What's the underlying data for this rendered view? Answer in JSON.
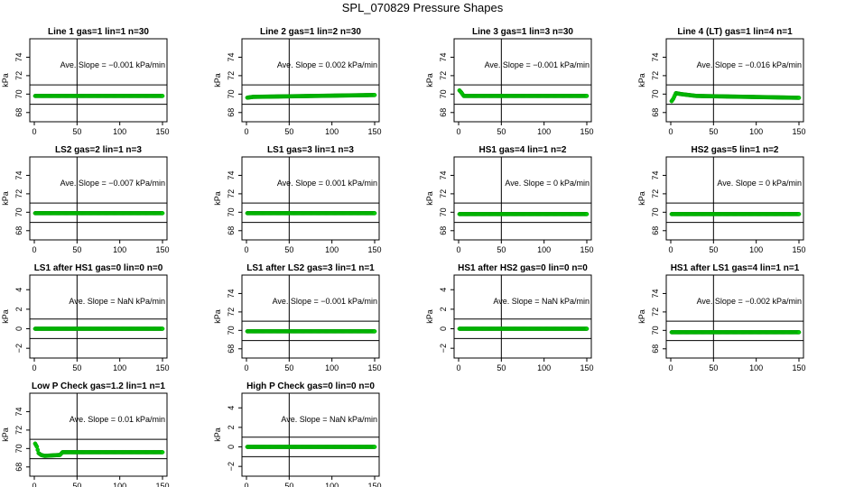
{
  "page": {
    "title": "SPL_070829  Pressure Shapes"
  },
  "style": {
    "series_color": "#00cc00",
    "marker_stroke": "#009900",
    "axis_color": "#000000"
  },
  "axis_labels": {
    "y": "kPa"
  },
  "chart_data": [
    {
      "type": "scatter",
      "title": "Line 1 gas=1 lin=1 n=30",
      "ylabel": "kPa",
      "xlim": [
        0,
        150
      ],
      "ylim": [
        67,
        76
      ],
      "xticks": [
        0,
        50,
        100,
        150
      ],
      "yticks": [
        68,
        70,
        72,
        74
      ],
      "hlines": [
        71,
        68.9
      ],
      "vline": 50,
      "slope_label": "Ave. Slope = -0.001  kPa/min",
      "series": [
        {
          "x_start": 1,
          "x_end": 150,
          "points": [
            [
              0,
              69.8
            ],
            [
              150,
              69.8
            ]
          ]
        }
      ]
    },
    {
      "type": "scatter",
      "title": "Line 2 gas=1 lin=2 n=30",
      "ylabel": "kPa",
      "xlim": [
        0,
        150
      ],
      "ylim": [
        67,
        76
      ],
      "xticks": [
        0,
        50,
        100,
        150
      ],
      "yticks": [
        68,
        70,
        72,
        74
      ],
      "hlines": [
        71,
        68.9
      ],
      "vline": 50,
      "slope_label": "Ave. Slope = 0.002  kPa/min",
      "series": [
        {
          "x_start": 1,
          "x_end": 150,
          "points": [
            [
              0,
              69.6
            ],
            [
              8,
              69.7
            ],
            [
              150,
              69.9
            ]
          ]
        }
      ]
    },
    {
      "type": "scatter",
      "title": "Line 3 gas=1 lin=3 n=30",
      "ylabel": "kPa",
      "xlim": [
        0,
        150
      ],
      "ylim": [
        67,
        76
      ],
      "xticks": [
        0,
        50,
        100,
        150
      ],
      "yticks": [
        68,
        70,
        72,
        74
      ],
      "hlines": [
        71,
        68.9
      ],
      "vline": 50,
      "slope_label": "Ave. Slope = -0.001  kPa/min",
      "series": [
        {
          "x_start": 1,
          "x_end": 150,
          "points": [
            [
              0,
              70.5
            ],
            [
              3,
              70.2
            ],
            [
              6,
              69.8
            ],
            [
              150,
              69.8
            ]
          ]
        }
      ]
    },
    {
      "type": "scatter",
      "title": "Line 4 (LT) gas=1 lin=4 n=1",
      "ylabel": "kPa",
      "xlim": [
        0,
        150
      ],
      "ylim": [
        67,
        76
      ],
      "xticks": [
        0,
        50,
        100,
        150
      ],
      "yticks": [
        68,
        70,
        72,
        74
      ],
      "hlines": [
        71,
        68.9
      ],
      "vline": 50,
      "slope_label": "Ave. Slope = -0.016  kPa/min",
      "series": [
        {
          "x_start": 1,
          "x_end": 150,
          "points": [
            [
              0,
              69.1
            ],
            [
              3,
              69.5
            ],
            [
              6,
              70.1
            ],
            [
              12,
              70.0
            ],
            [
              30,
              69.8
            ],
            [
              150,
              69.6
            ]
          ]
        }
      ]
    },
    {
      "type": "scatter",
      "title": "LS2 gas=2 lin=1 n=3",
      "ylabel": "kPa",
      "xlim": [
        0,
        150
      ],
      "ylim": [
        67,
        76
      ],
      "xticks": [
        0,
        50,
        100,
        150
      ],
      "yticks": [
        68,
        70,
        72,
        74
      ],
      "hlines": [
        71,
        68.9
      ],
      "vline": 50,
      "slope_label": "Ave. Slope = -0.007  kPa/min",
      "series": [
        {
          "x_start": 1,
          "x_end": 150,
          "points": [
            [
              0,
              69.9
            ],
            [
              150,
              69.9
            ]
          ]
        }
      ]
    },
    {
      "type": "scatter",
      "title": "LS1 gas=3 lin=1 n=3",
      "ylabel": "kPa",
      "xlim": [
        0,
        150
      ],
      "ylim": [
        67,
        76
      ],
      "xticks": [
        0,
        50,
        100,
        150
      ],
      "yticks": [
        68,
        70,
        72,
        74
      ],
      "hlines": [
        71,
        68.9
      ],
      "vline": 50,
      "slope_label": "Ave. Slope = 0.001  kPa/min",
      "series": [
        {
          "x_start": 1,
          "x_end": 150,
          "points": [
            [
              0,
              69.9
            ],
            [
              150,
              69.9
            ]
          ]
        }
      ]
    },
    {
      "type": "scatter",
      "title": "HS1 gas=4 lin=1 n=2",
      "ylabel": "kPa",
      "xlim": [
        0,
        150
      ],
      "ylim": [
        67,
        76
      ],
      "xticks": [
        0,
        50,
        100,
        150
      ],
      "yticks": [
        68,
        70,
        72,
        74
      ],
      "hlines": [
        71,
        68.9
      ],
      "vline": 50,
      "slope_label": "Ave. Slope = 0  kPa/min",
      "series": [
        {
          "x_start": 1,
          "x_end": 150,
          "points": [
            [
              0,
              69.8
            ],
            [
              150,
              69.8
            ]
          ]
        }
      ]
    },
    {
      "type": "scatter",
      "title": "HS2 gas=5 lin=1 n=2",
      "ylabel": "kPa",
      "xlim": [
        0,
        150
      ],
      "ylim": [
        67,
        76
      ],
      "xticks": [
        0,
        50,
        100,
        150
      ],
      "yticks": [
        68,
        70,
        72,
        74
      ],
      "hlines": [
        71,
        68.9
      ],
      "vline": 50,
      "slope_label": "Ave. Slope = 0  kPa/min",
      "series": [
        {
          "x_start": 1,
          "x_end": 150,
          "points": [
            [
              0,
              69.8
            ],
            [
              150,
              69.8
            ]
          ]
        }
      ]
    },
    {
      "type": "scatter",
      "title": "LS1 after HS1 gas=0 lin=0 n=0",
      "ylabel": "kPa",
      "xlim": [
        0,
        150
      ],
      "ylim": [
        -3,
        5.5
      ],
      "xticks": [
        0,
        50,
        100,
        150
      ],
      "yticks": [
        -2,
        0,
        2,
        4
      ],
      "hlines": [
        1,
        -1
      ],
      "vline": 50,
      "slope_label": "Ave. Slope = NaN  kPa/min",
      "series": [
        {
          "x_start": 1,
          "x_end": 150,
          "points": [
            [
              0,
              0
            ],
            [
              150,
              0
            ]
          ]
        }
      ]
    },
    {
      "type": "scatter",
      "title": "LS1 after LS2 gas=3 lin=1 n=1",
      "ylabel": "kPa",
      "xlim": [
        0,
        150
      ],
      "ylim": [
        67,
        76
      ],
      "xticks": [
        0,
        50,
        100,
        150
      ],
      "yticks": [
        68,
        70,
        72,
        74
      ],
      "hlines": [
        71,
        68.9
      ],
      "vline": 50,
      "slope_label": "Ave. Slope = -0.001  kPa/min",
      "series": [
        {
          "x_start": 1,
          "x_end": 150,
          "points": [
            [
              0,
              69.9
            ],
            [
              150,
              69.9
            ]
          ]
        }
      ]
    },
    {
      "type": "scatter",
      "title": "HS1 after HS2 gas=0 lin=0 n=0",
      "ylabel": "kPa",
      "xlim": [
        0,
        150
      ],
      "ylim": [
        -3,
        5.5
      ],
      "xticks": [
        0,
        50,
        100,
        150
      ],
      "yticks": [
        -2,
        0,
        2,
        4
      ],
      "hlines": [
        1,
        -1
      ],
      "vline": 50,
      "slope_label": "Ave. Slope = NaN  kPa/min",
      "series": [
        {
          "x_start": 1,
          "x_end": 150,
          "points": [
            [
              0,
              0
            ],
            [
              150,
              0
            ]
          ]
        }
      ]
    },
    {
      "type": "scatter",
      "title": "HS1 after LS1 gas=4 lin=1 n=1",
      "ylabel": "kPa",
      "xlim": [
        0,
        150
      ],
      "ylim": [
        67,
        76
      ],
      "xticks": [
        0,
        50,
        100,
        150
      ],
      "yticks": [
        68,
        70,
        72,
        74
      ],
      "hlines": [
        71,
        68.9
      ],
      "vline": 50,
      "slope_label": "Ave. Slope = -0.002  kPa/min",
      "series": [
        {
          "x_start": 1,
          "x_end": 150,
          "points": [
            [
              0,
              69.8
            ],
            [
              150,
              69.8
            ]
          ]
        }
      ]
    },
    {
      "type": "scatter",
      "title": "Low P Check gas=1.2 lin=1 n=1",
      "ylabel": "kPa",
      "xlim": [
        0,
        150
      ],
      "ylim": [
        67,
        76
      ],
      "xticks": [
        0,
        50,
        100,
        150
      ],
      "yticks": [
        68,
        70,
        72,
        74
      ],
      "hlines": [
        71,
        68.9
      ],
      "vline": 50,
      "slope_label": "Ave. Slope = 0.01  kPa/min",
      "series": [
        {
          "x_start": 1,
          "x_end": 150,
          "points": [
            [
              0,
              70.7
            ],
            [
              3,
              70.2
            ],
            [
              5,
              69.5
            ],
            [
              8,
              69.3
            ],
            [
              12,
              69.2
            ],
            [
              30,
              69.3
            ],
            [
              33,
              69.6
            ],
            [
              150,
              69.6
            ]
          ]
        }
      ]
    },
    {
      "type": "scatter",
      "title": "High P Check gas=0 lin=0 n=0",
      "ylabel": "kPa",
      "xlim": [
        0,
        150
      ],
      "ylim": [
        -3,
        5.5
      ],
      "xticks": [
        0,
        50,
        100,
        150
      ],
      "yticks": [
        -2,
        0,
        2,
        4
      ],
      "hlines": [
        1,
        -1
      ],
      "vline": 50,
      "slope_label": "Ave. Slope = NaN  kPa/min",
      "series": [
        {
          "x_start": 1,
          "x_end": 150,
          "points": [
            [
              0,
              0
            ],
            [
              150,
              0
            ]
          ]
        }
      ]
    }
  ]
}
